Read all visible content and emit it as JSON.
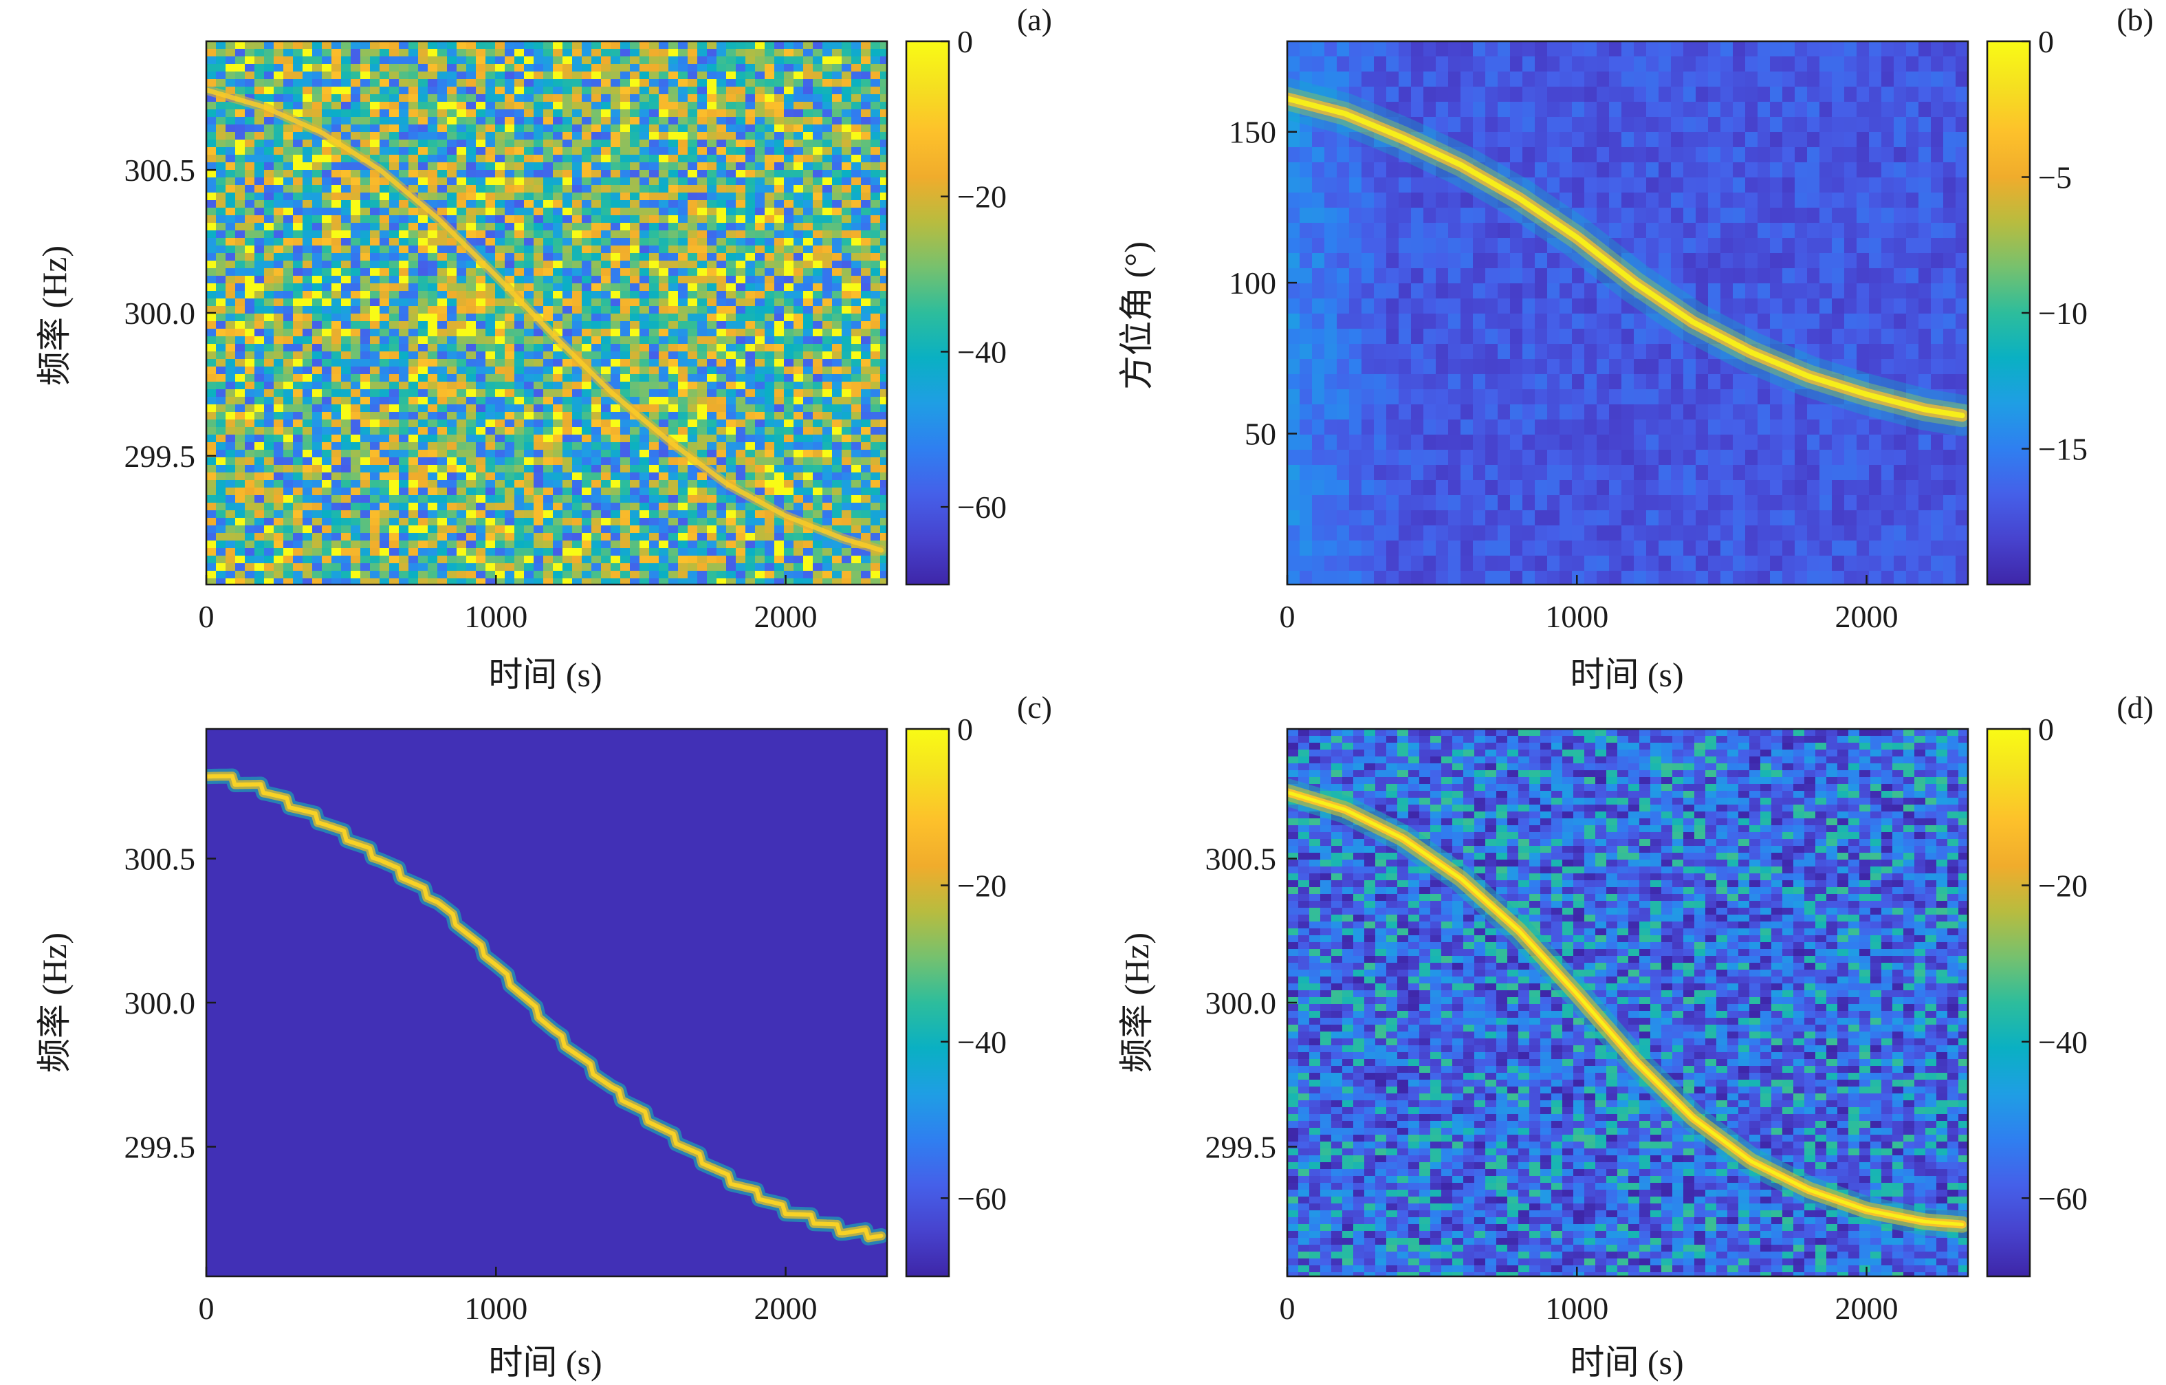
{
  "colors": {
    "colormap": [
      "#3e26a8",
      "#4743ce",
      "#4560e9",
      "#2f7ff0",
      "#1f9ee4",
      "#0ab0c3",
      "#2dbd9c",
      "#76c16e",
      "#b8bc3f",
      "#f0ac2c",
      "#fdc12b",
      "#f5e020",
      "#f9fb15"
    ],
    "axis": "#1a1a1a"
  },
  "chart_data": [
    {
      "panel_label": "(a)",
      "type": "heatmap",
      "variant": "noisy-spectrogram",
      "xlabel": "时间 (s)",
      "ylabel": "频率 (Hz)",
      "xlim": [
        0,
        2350
      ],
      "ylim": [
        299.05,
        300.95
      ],
      "xticks": [
        0,
        1000,
        2000
      ],
      "xtick_labels": [
        "0",
        "1000",
        "2000"
      ],
      "yticks": [
        299.5,
        300.0,
        300.5
      ],
      "ytick_labels": [
        "299.5",
        "300.0",
        "300.5"
      ],
      "colorbar": {
        "range": [
          -70,
          0
        ],
        "ticks": [
          0,
          -20,
          -40,
          -60
        ],
        "tick_labels": [
          "0",
          "−20",
          "−40",
          "−60"
        ]
      },
      "ridge": {
        "x": [
          0,
          200,
          400,
          600,
          800,
          1000,
          1200,
          1400,
          1600,
          1800,
          2000,
          2200,
          2330
        ],
        "y": [
          300.78,
          300.72,
          300.63,
          300.5,
          300.33,
          300.13,
          299.92,
          299.72,
          299.55,
          299.4,
          299.29,
          299.21,
          299.17
        ]
      }
    },
    {
      "panel_label": "(b)",
      "type": "heatmap",
      "variant": "bearing-time",
      "xlabel": "时间 (s)",
      "ylabel": "方位角 (°)",
      "xlim": [
        0,
        2350
      ],
      "ylim": [
        0,
        180
      ],
      "xticks": [
        0,
        1000,
        2000
      ],
      "xtick_labels": [
        "0",
        "1000",
        "2000"
      ],
      "yticks": [
        50,
        100,
        150
      ],
      "ytick_labels": [
        "50",
        "100",
        "150"
      ],
      "colorbar": {
        "range": [
          -20,
          0
        ],
        "ticks": [
          0,
          -5,
          -10,
          -15
        ],
        "tick_labels": [
          "0",
          "−5",
          "−10",
          "−15"
        ]
      },
      "ridge": {
        "x": [
          0,
          200,
          400,
          600,
          800,
          1000,
          1200,
          1400,
          1600,
          1800,
          2000,
          2200,
          2330
        ],
        "y": [
          161,
          156,
          148,
          139,
          128,
          115,
          100,
          87,
          77,
          69,
          63,
          58,
          56
        ]
      }
    },
    {
      "panel_label": "(c)",
      "type": "heatmap",
      "variant": "clean-stepped",
      "xlabel": "时间 (s)",
      "ylabel": "频率 (Hz)",
      "xlim": [
        0,
        2350
      ],
      "ylim": [
        299.05,
        300.95
      ],
      "xticks": [
        0,
        1000,
        2000
      ],
      "xtick_labels": [
        "0",
        "1000",
        "2000"
      ],
      "yticks": [
        299.5,
        300.0,
        300.5
      ],
      "ytick_labels": [
        "299.5",
        "300.0",
        "300.5"
      ],
      "colorbar": {
        "range": [
          -70,
          0
        ],
        "ticks": [
          0,
          -20,
          -40,
          -60
        ],
        "tick_labels": [
          "0",
          "−20",
          "−40",
          "−60"
        ]
      },
      "ridge": {
        "x": [
          0,
          200,
          400,
          600,
          800,
          1000,
          1200,
          1400,
          1600,
          1800,
          2000,
          2200,
          2330
        ],
        "y": [
          300.8,
          300.74,
          300.63,
          300.5,
          300.35,
          300.13,
          299.9,
          299.7,
          299.54,
          299.39,
          299.28,
          299.21,
          299.19
        ]
      }
    },
    {
      "panel_label": "(d)",
      "type": "heatmap",
      "variant": "smooth-ridge",
      "xlabel": "时间 (s)",
      "ylabel": "频率 (Hz)",
      "xlim": [
        0,
        2350
      ],
      "ylim": [
        299.05,
        300.95
      ],
      "xticks": [
        0,
        1000,
        2000
      ],
      "xtick_labels": [
        "0",
        "1000",
        "2000"
      ],
      "yticks": [
        299.5,
        300.0,
        300.5
      ],
      "ytick_labels": [
        "299.5",
        "300.0",
        "300.5"
      ],
      "colorbar": {
        "range": [
          -70,
          0
        ],
        "ticks": [
          0,
          -20,
          -40,
          -60
        ],
        "tick_labels": [
          "0",
          "−20",
          "−40",
          "−60"
        ]
      },
      "ridge": {
        "x": [
          0,
          200,
          400,
          600,
          800,
          1000,
          1200,
          1400,
          1600,
          1800,
          2000,
          2200,
          2330
        ],
        "y": [
          300.73,
          300.67,
          300.57,
          300.43,
          300.25,
          300.03,
          299.8,
          299.6,
          299.45,
          299.35,
          299.28,
          299.24,
          299.23
        ]
      }
    }
  ]
}
